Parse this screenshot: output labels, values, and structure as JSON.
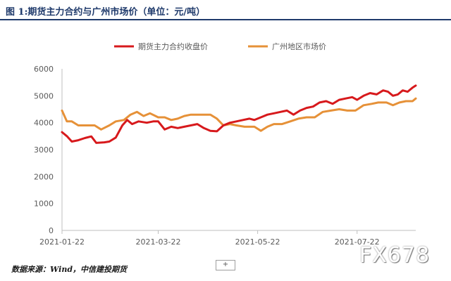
{
  "title": "图 1:期货主力合约与广州市场价（单位：元/吨）",
  "source": "数据来源：Wind，中信建投期货",
  "expand_label": "+",
  "watermark": "FX678",
  "chart_data": {
    "type": "line",
    "title": "",
    "xlabel": "",
    "ylabel": "",
    "ylim": [
      0,
      6000
    ],
    "yticks": [
      0,
      1000,
      2000,
      3000,
      4000,
      5000,
      6000
    ],
    "x_range": [
      "2021-01-22",
      "2021-08-27"
    ],
    "x_ticks": [
      "2021-01-22",
      "2021-03-22",
      "2021-05-22",
      "2021-07-22"
    ],
    "grid": false,
    "legend": "top",
    "series": [
      {
        "name": "期货主力合约收盘价",
        "color": "#d7191c",
        "points": [
          [
            "2021-01-22",
            3650
          ],
          [
            "2021-01-25",
            3500
          ],
          [
            "2021-01-28",
            3300
          ],
          [
            "2021-02-01",
            3350
          ],
          [
            "2021-02-05",
            3430
          ],
          [
            "2021-02-09",
            3490
          ],
          [
            "2021-02-12",
            3250
          ],
          [
            "2021-02-17",
            3270
          ],
          [
            "2021-02-20",
            3300
          ],
          [
            "2021-02-24",
            3450
          ],
          [
            "2021-02-28",
            3900
          ],
          [
            "2021-03-03",
            4100
          ],
          [
            "2021-03-06",
            3950
          ],
          [
            "2021-03-10",
            4050
          ],
          [
            "2021-03-15",
            4000
          ],
          [
            "2021-03-19",
            4050
          ],
          [
            "2021-03-22",
            4050
          ],
          [
            "2021-03-26",
            3750
          ],
          [
            "2021-03-30",
            3850
          ],
          [
            "2021-04-03",
            3800
          ],
          [
            "2021-04-07",
            3850
          ],
          [
            "2021-04-11",
            3900
          ],
          [
            "2021-04-15",
            3950
          ],
          [
            "2021-04-19",
            3800
          ],
          [
            "2021-04-23",
            3700
          ],
          [
            "2021-04-27",
            3680
          ],
          [
            "2021-05-01",
            3900
          ],
          [
            "2021-05-05",
            4000
          ],
          [
            "2021-05-09",
            4050
          ],
          [
            "2021-05-13",
            4100
          ],
          [
            "2021-05-17",
            4150
          ],
          [
            "2021-05-20",
            4100
          ],
          [
            "2021-05-24",
            4200
          ],
          [
            "2021-05-28",
            4300
          ],
          [
            "2021-06-01",
            4350
          ],
          [
            "2021-06-05",
            4400
          ],
          [
            "2021-06-09",
            4450
          ],
          [
            "2021-06-13",
            4300
          ],
          [
            "2021-06-17",
            4450
          ],
          [
            "2021-06-21",
            4550
          ],
          [
            "2021-06-25",
            4600
          ],
          [
            "2021-06-29",
            4750
          ],
          [
            "2021-07-03",
            4800
          ],
          [
            "2021-07-07",
            4700
          ],
          [
            "2021-07-11",
            4850
          ],
          [
            "2021-07-15",
            4900
          ],
          [
            "2021-07-19",
            4950
          ],
          [
            "2021-07-22",
            4850
          ],
          [
            "2021-07-26",
            5000
          ],
          [
            "2021-07-30",
            5100
          ],
          [
            "2021-08-03",
            5050
          ],
          [
            "2021-08-07",
            5200
          ],
          [
            "2021-08-10",
            5150
          ],
          [
            "2021-08-13",
            5000
          ],
          [
            "2021-08-16",
            5050
          ],
          [
            "2021-08-19",
            5200
          ],
          [
            "2021-08-22",
            5150
          ],
          [
            "2021-08-25",
            5300
          ],
          [
            "2021-08-27",
            5380
          ]
        ]
      },
      {
        "name": "广州地区市场价",
        "color": "#e69138",
        "points": [
          [
            "2021-01-22",
            4450
          ],
          [
            "2021-01-25",
            4050
          ],
          [
            "2021-01-28",
            4050
          ],
          [
            "2021-02-01",
            3900
          ],
          [
            "2021-02-06",
            3900
          ],
          [
            "2021-02-11",
            3900
          ],
          [
            "2021-02-15",
            3750
          ],
          [
            "2021-02-20",
            3900
          ],
          [
            "2021-02-24",
            4050
          ],
          [
            "2021-03-01",
            4100
          ],
          [
            "2021-03-05",
            4300
          ],
          [
            "2021-03-09",
            4400
          ],
          [
            "2021-03-13",
            4250
          ],
          [
            "2021-03-17",
            4350
          ],
          [
            "2021-03-22",
            4200
          ],
          [
            "2021-03-26",
            4200
          ],
          [
            "2021-03-30",
            4100
          ],
          [
            "2021-04-03",
            4150
          ],
          [
            "2021-04-07",
            4250
          ],
          [
            "2021-04-11",
            4300
          ],
          [
            "2021-04-17",
            4300
          ],
          [
            "2021-04-23",
            4300
          ],
          [
            "2021-04-27",
            4150
          ],
          [
            "2021-05-01",
            3900
          ],
          [
            "2021-05-05",
            3950
          ],
          [
            "2021-05-09",
            3900
          ],
          [
            "2021-05-14",
            3850
          ],
          [
            "2021-05-20",
            3850
          ],
          [
            "2021-05-24",
            3700
          ],
          [
            "2021-05-28",
            3850
          ],
          [
            "2021-06-01",
            3950
          ],
          [
            "2021-06-06",
            3950
          ],
          [
            "2021-06-11",
            4050
          ],
          [
            "2021-06-16",
            4150
          ],
          [
            "2021-06-21",
            4200
          ],
          [
            "2021-06-26",
            4200
          ],
          [
            "2021-07-01",
            4400
          ],
          [
            "2021-07-06",
            4450
          ],
          [
            "2021-07-11",
            4500
          ],
          [
            "2021-07-16",
            4450
          ],
          [
            "2021-07-21",
            4450
          ],
          [
            "2021-07-26",
            4650
          ],
          [
            "2021-07-31",
            4700
          ],
          [
            "2021-08-04",
            4750
          ],
          [
            "2021-08-09",
            4750
          ],
          [
            "2021-08-13",
            4650
          ],
          [
            "2021-08-17",
            4750
          ],
          [
            "2021-08-21",
            4800
          ],
          [
            "2021-08-25",
            4800
          ],
          [
            "2021-08-27",
            4900
          ]
        ]
      }
    ]
  }
}
